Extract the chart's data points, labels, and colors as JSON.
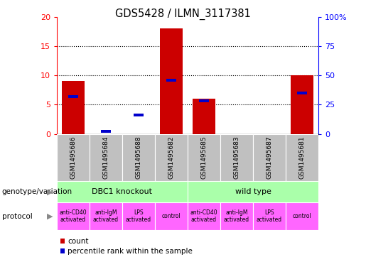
{
  "title": "GDS5428 / ILMN_3117381",
  "samples": [
    "GSM1495686",
    "GSM1495684",
    "GSM1495688",
    "GSM1495682",
    "GSM1495685",
    "GSM1495683",
    "GSM1495687",
    "GSM1495681"
  ],
  "count_values": [
    9,
    0,
    0,
    18,
    6,
    0,
    0,
    10
  ],
  "percentile_values": [
    32,
    2,
    16,
    46,
    28,
    0,
    0,
    35
  ],
  "ylim_left": [
    0,
    20
  ],
  "ylim_right": [
    0,
    100
  ],
  "yticks_left": [
    0,
    5,
    10,
    15,
    20
  ],
  "yticks_right": [
    0,
    25,
    50,
    75,
    100
  ],
  "bar_color": "#cc0000",
  "percentile_color": "#0000cc",
  "genotype_groups": [
    {
      "label": "DBC1 knockout",
      "start": 0,
      "end": 4,
      "color": "#aaffaa"
    },
    {
      "label": "wild type",
      "start": 4,
      "end": 8,
      "color": "#aaffaa"
    }
  ],
  "protocol_labels": [
    "anti-CD40\nactivated",
    "anti-IgM\nactivated",
    "LPS\nactivated",
    "control",
    "anti-CD40\nactivated",
    "anti-IgM\nactivated",
    "LPS\nactivated",
    "control"
  ],
  "control_indices": [
    3,
    7
  ],
  "gsm_bg_color": "#c0c0c0",
  "protocol_color": "#ff66ff",
  "legend_count_color": "#cc0000",
  "legend_percentile_color": "#0000cc",
  "left_label_genotype": "genotype/variation",
  "left_label_protocol": "protocol",
  "background_color": "#ffffff"
}
